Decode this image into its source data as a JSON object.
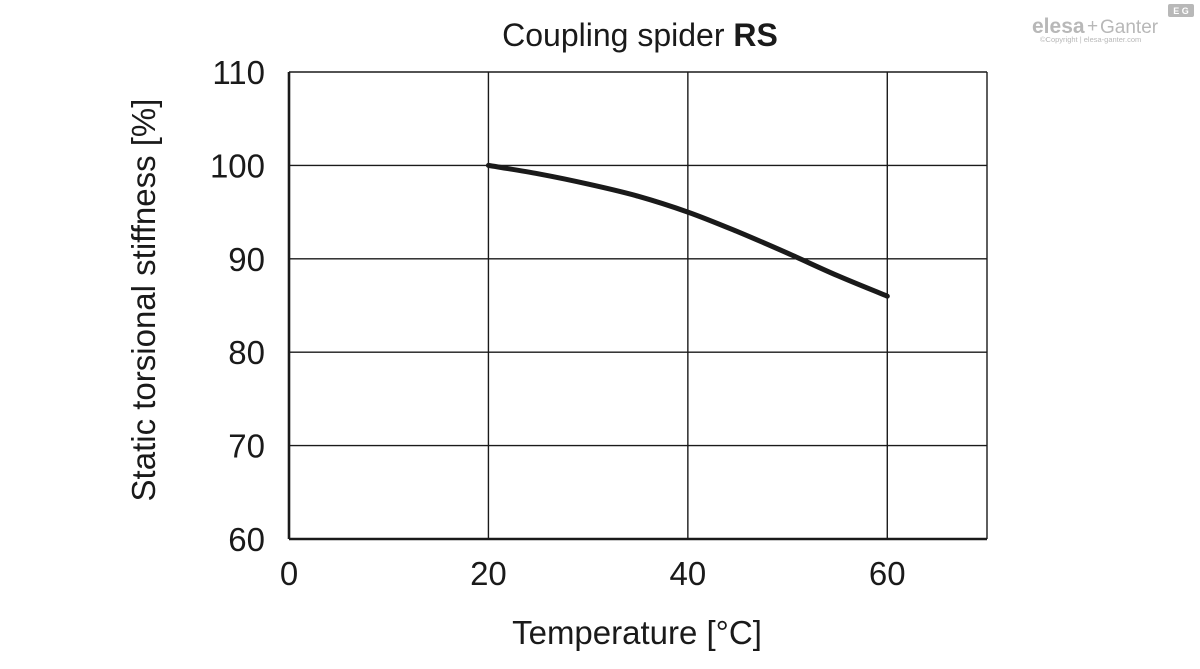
{
  "chart_data": {
    "type": "line",
    "title": "Coupling spider",
    "title_bold": "RS",
    "xlabel": "Temperature [°C]",
    "ylabel": "Static torsional stiffness [%]",
    "xlim": [
      0,
      70
    ],
    "ylim": [
      60,
      110
    ],
    "x_ticks": [
      0,
      20,
      40,
      60
    ],
    "x_tick_labels": [
      "0",
      "20",
      "40",
      "60"
    ],
    "x_grid": [
      0,
      20,
      40,
      60,
      70
    ],
    "y_ticks": [
      60,
      70,
      80,
      90,
      100,
      110
    ],
    "y_tick_labels": [
      "60",
      "70",
      "80",
      "90",
      "100",
      "110"
    ],
    "grid": true,
    "legend": "none",
    "series": [
      {
        "x": [
          20,
          25,
          30,
          35,
          40,
          45,
          50,
          55,
          60
        ],
        "y": [
          100,
          99.1,
          98,
          96.7,
          95,
          92.9,
          90.6,
          88.2,
          86
        ]
      }
    ]
  },
  "logo": {
    "brand": "elesa",
    "plus": "+",
    "brand2": "Ganter",
    "badge": "E G",
    "copyright": "©Copyright | elesa-ganter.com"
  },
  "colors": {
    "ink": "#1a1a1a",
    "background": "#ffffff",
    "logo": "#b8b8b8"
  }
}
